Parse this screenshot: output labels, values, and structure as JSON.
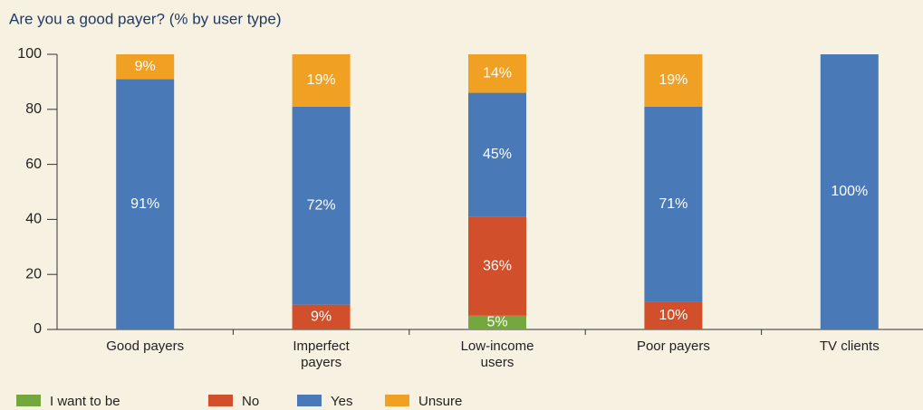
{
  "chart_data": {
    "type": "stacked_bar",
    "title": "Are you a good payer? (% by user type)",
    "categories": [
      "Good payers",
      "Imperfect payers",
      "Low-income users",
      "Poor payers",
      "TV clients"
    ],
    "series": [
      {
        "name": "I want to be",
        "color": "#74a83e",
        "values": [
          0,
          0,
          5,
          0,
          0
        ],
        "value_labels": [
          null,
          null,
          "5%",
          null,
          null
        ]
      },
      {
        "name": "No",
        "color": "#d14f2a",
        "values": [
          0,
          9,
          36,
          10,
          0
        ],
        "value_labels": [
          null,
          "9%",
          "36%",
          "10%",
          null
        ]
      },
      {
        "name": "Yes",
        "color": "#4a79b7",
        "values": [
          91,
          72,
          45,
          71,
          100
        ],
        "value_labels": [
          "91%",
          "72%",
          "45%",
          "71%",
          "100%"
        ]
      },
      {
        "name": "Unsure",
        "color": "#f0a124",
        "values": [
          9,
          19,
          14,
          19,
          0
        ],
        "value_labels": [
          "9%",
          "19%",
          "14%",
          "19%",
          null
        ]
      }
    ],
    "ylim": [
      0,
      100
    ],
    "yticks": [
      0,
      20,
      40,
      60,
      80,
      100
    ],
    "grid": false
  }
}
